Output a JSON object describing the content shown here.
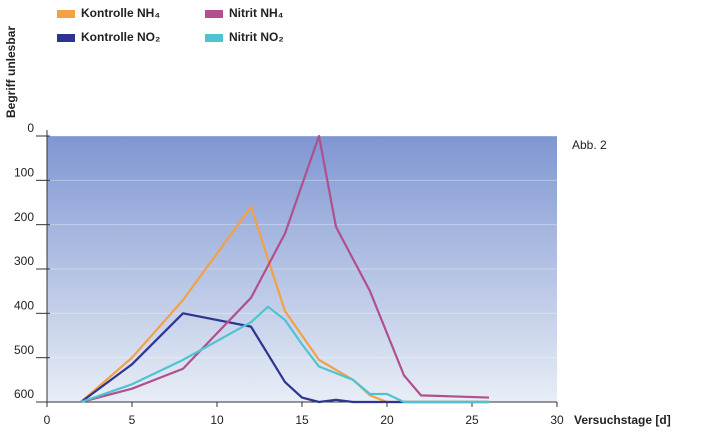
{
  "chart_data": {
    "type": "line",
    "y_label": "Begriff unlesbar",
    "x_label": "Versuchstage [d]",
    "annotation": "Abb. 2",
    "xlim": [
      0,
      30
    ],
    "xticks": [
      0,
      5,
      10,
      15,
      20,
      25,
      30
    ],
    "ylim": [
      600,
      0
    ],
    "yticks": [
      0,
      100,
      200,
      300,
      400,
      500,
      600
    ],
    "inverted_y": true,
    "series": [
      {
        "name": "Kontrolle NH₄",
        "color": "#f4a046",
        "x": [
          2,
          5,
          8,
          12,
          14,
          16,
          18,
          19,
          20,
          26
        ],
        "values": [
          600,
          500,
          370,
          160,
          395,
          505,
          550,
          585,
          600,
          600
        ]
      },
      {
        "name": "Kontrolle NO₂",
        "color": "#2c3590",
        "x": [
          2,
          5,
          8,
          12,
          14,
          15,
          16,
          17,
          18,
          26
        ],
        "values": [
          600,
          515,
          400,
          430,
          555,
          590,
          600,
          595,
          600,
          600
        ]
      },
      {
        "name": "Nitrit NH₄",
        "color": "#b0508e",
        "x": [
          2,
          5,
          8,
          12,
          14,
          16,
          17,
          19,
          21,
          22,
          26
        ],
        "values": [
          600,
          570,
          525,
          365,
          220,
          0,
          205,
          350,
          540,
          585,
          590
        ]
      },
      {
        "name": "Nitrit NO₂",
        "color": "#4fc4d0",
        "x": [
          2,
          5,
          8,
          12,
          13,
          14,
          15,
          16,
          18,
          19,
          20,
          21,
          26
        ],
        "values": [
          600,
          560,
          505,
          420,
          385,
          415,
          470,
          520,
          550,
          582,
          582,
          600,
          600
        ]
      }
    ]
  }
}
